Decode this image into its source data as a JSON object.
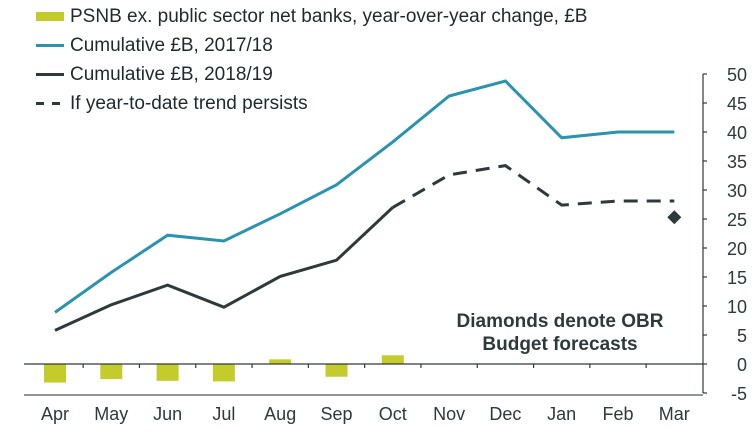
{
  "chart_data": {
    "type": "bar+line",
    "title": "",
    "xlabel": "",
    "ylabel": "",
    "categories": [
      "Apr",
      "May",
      "Jun",
      "Jul",
      "Aug",
      "Sep",
      "Oct",
      "Nov",
      "Dec",
      "Jan",
      "Feb",
      "Mar"
    ],
    "ylim": [
      -5,
      50
    ],
    "yticks": [
      -5,
      0,
      5,
      10,
      15,
      20,
      25,
      30,
      35,
      40,
      45,
      50
    ],
    "y_axis_position": "right",
    "grid": false,
    "legend_position": "top-left",
    "series": [
      {
        "name": "PSNB ex. public sector net banks, year-over-year change, £B",
        "type": "bar",
        "color": "#c3cc2a",
        "values": [
          -3.2,
          -2.6,
          -2.9,
          -3.0,
          0.8,
          -2.2,
          1.5,
          null,
          null,
          null,
          null,
          null
        ]
      },
      {
        "name": "Cumulative £B, 2017/18",
        "type": "line",
        "color": "#2a93b0",
        "values": [
          8.9,
          15.8,
          22.2,
          21.2,
          25.9,
          30.9,
          38.3,
          46.2,
          48.8,
          39.0,
          40.0,
          40.0
        ]
      },
      {
        "name": "Cumulative £B, 2018/19",
        "type": "line",
        "color": "#2d3a3c",
        "values": [
          5.8,
          10.2,
          13.6,
          9.8,
          15.1,
          17.9,
          27.0,
          null,
          null,
          null,
          null,
          null
        ]
      },
      {
        "name": "If year-to-date trend persists",
        "type": "line-dashed",
        "color": "#2d3a3c",
        "values": [
          null,
          null,
          null,
          null,
          null,
          null,
          27.0,
          32.6,
          34.2,
          27.4,
          28.1,
          28.1
        ]
      }
    ],
    "markers": [
      {
        "name": "OBR Budget forecast",
        "shape": "diamond",
        "category": "Mar",
        "value": 25.3,
        "color": "#2d3a3c"
      }
    ],
    "annotations": [
      "Diamonds denote OBR",
      "Budget forecasts"
    ]
  }
}
